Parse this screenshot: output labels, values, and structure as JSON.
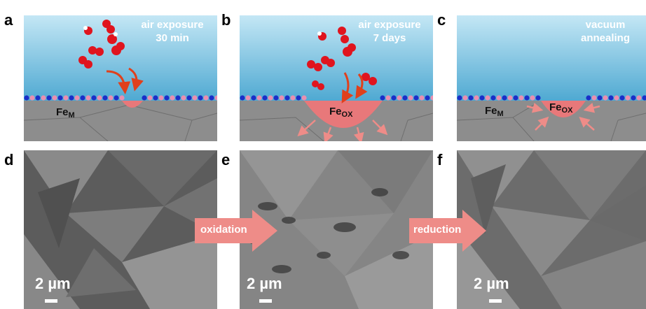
{
  "panels": {
    "a": {
      "letter": "a",
      "annotation_line1": "air exposure",
      "annotation_line2": "30 min",
      "fe_main": "Fe",
      "fe_sub": "M"
    },
    "b": {
      "letter": "b",
      "annotation_line1": "air exposure",
      "annotation_line2": "7 days",
      "fe_main": "Fe",
      "fe_sub": "OX"
    },
    "c": {
      "letter": "c",
      "annotation_line1": "vacuum",
      "annotation_line2": "annealing",
      "fe_main_left": "Fe",
      "fe_sub_left": "M",
      "fe_main": "Fe",
      "fe_sub": "OX"
    },
    "d": {
      "letter": "d",
      "scale": "2 µm"
    },
    "e": {
      "letter": "e",
      "scale": "2 µm"
    },
    "f": {
      "letter": "f",
      "scale": "2 µm"
    }
  },
  "arrows": {
    "first": "oxidation",
    "second": "reduction"
  },
  "colors": {
    "sky_top": "#bfe4f3",
    "sky_bottom": "#5fb3d6",
    "substrate": "#8a8a8a",
    "oxide": "#e8787a",
    "arrow": "#ee8c88",
    "molecule_red": "#e0141e",
    "atom_blue": "#1a2fc8",
    "atom_pink": "#e88fb0"
  }
}
